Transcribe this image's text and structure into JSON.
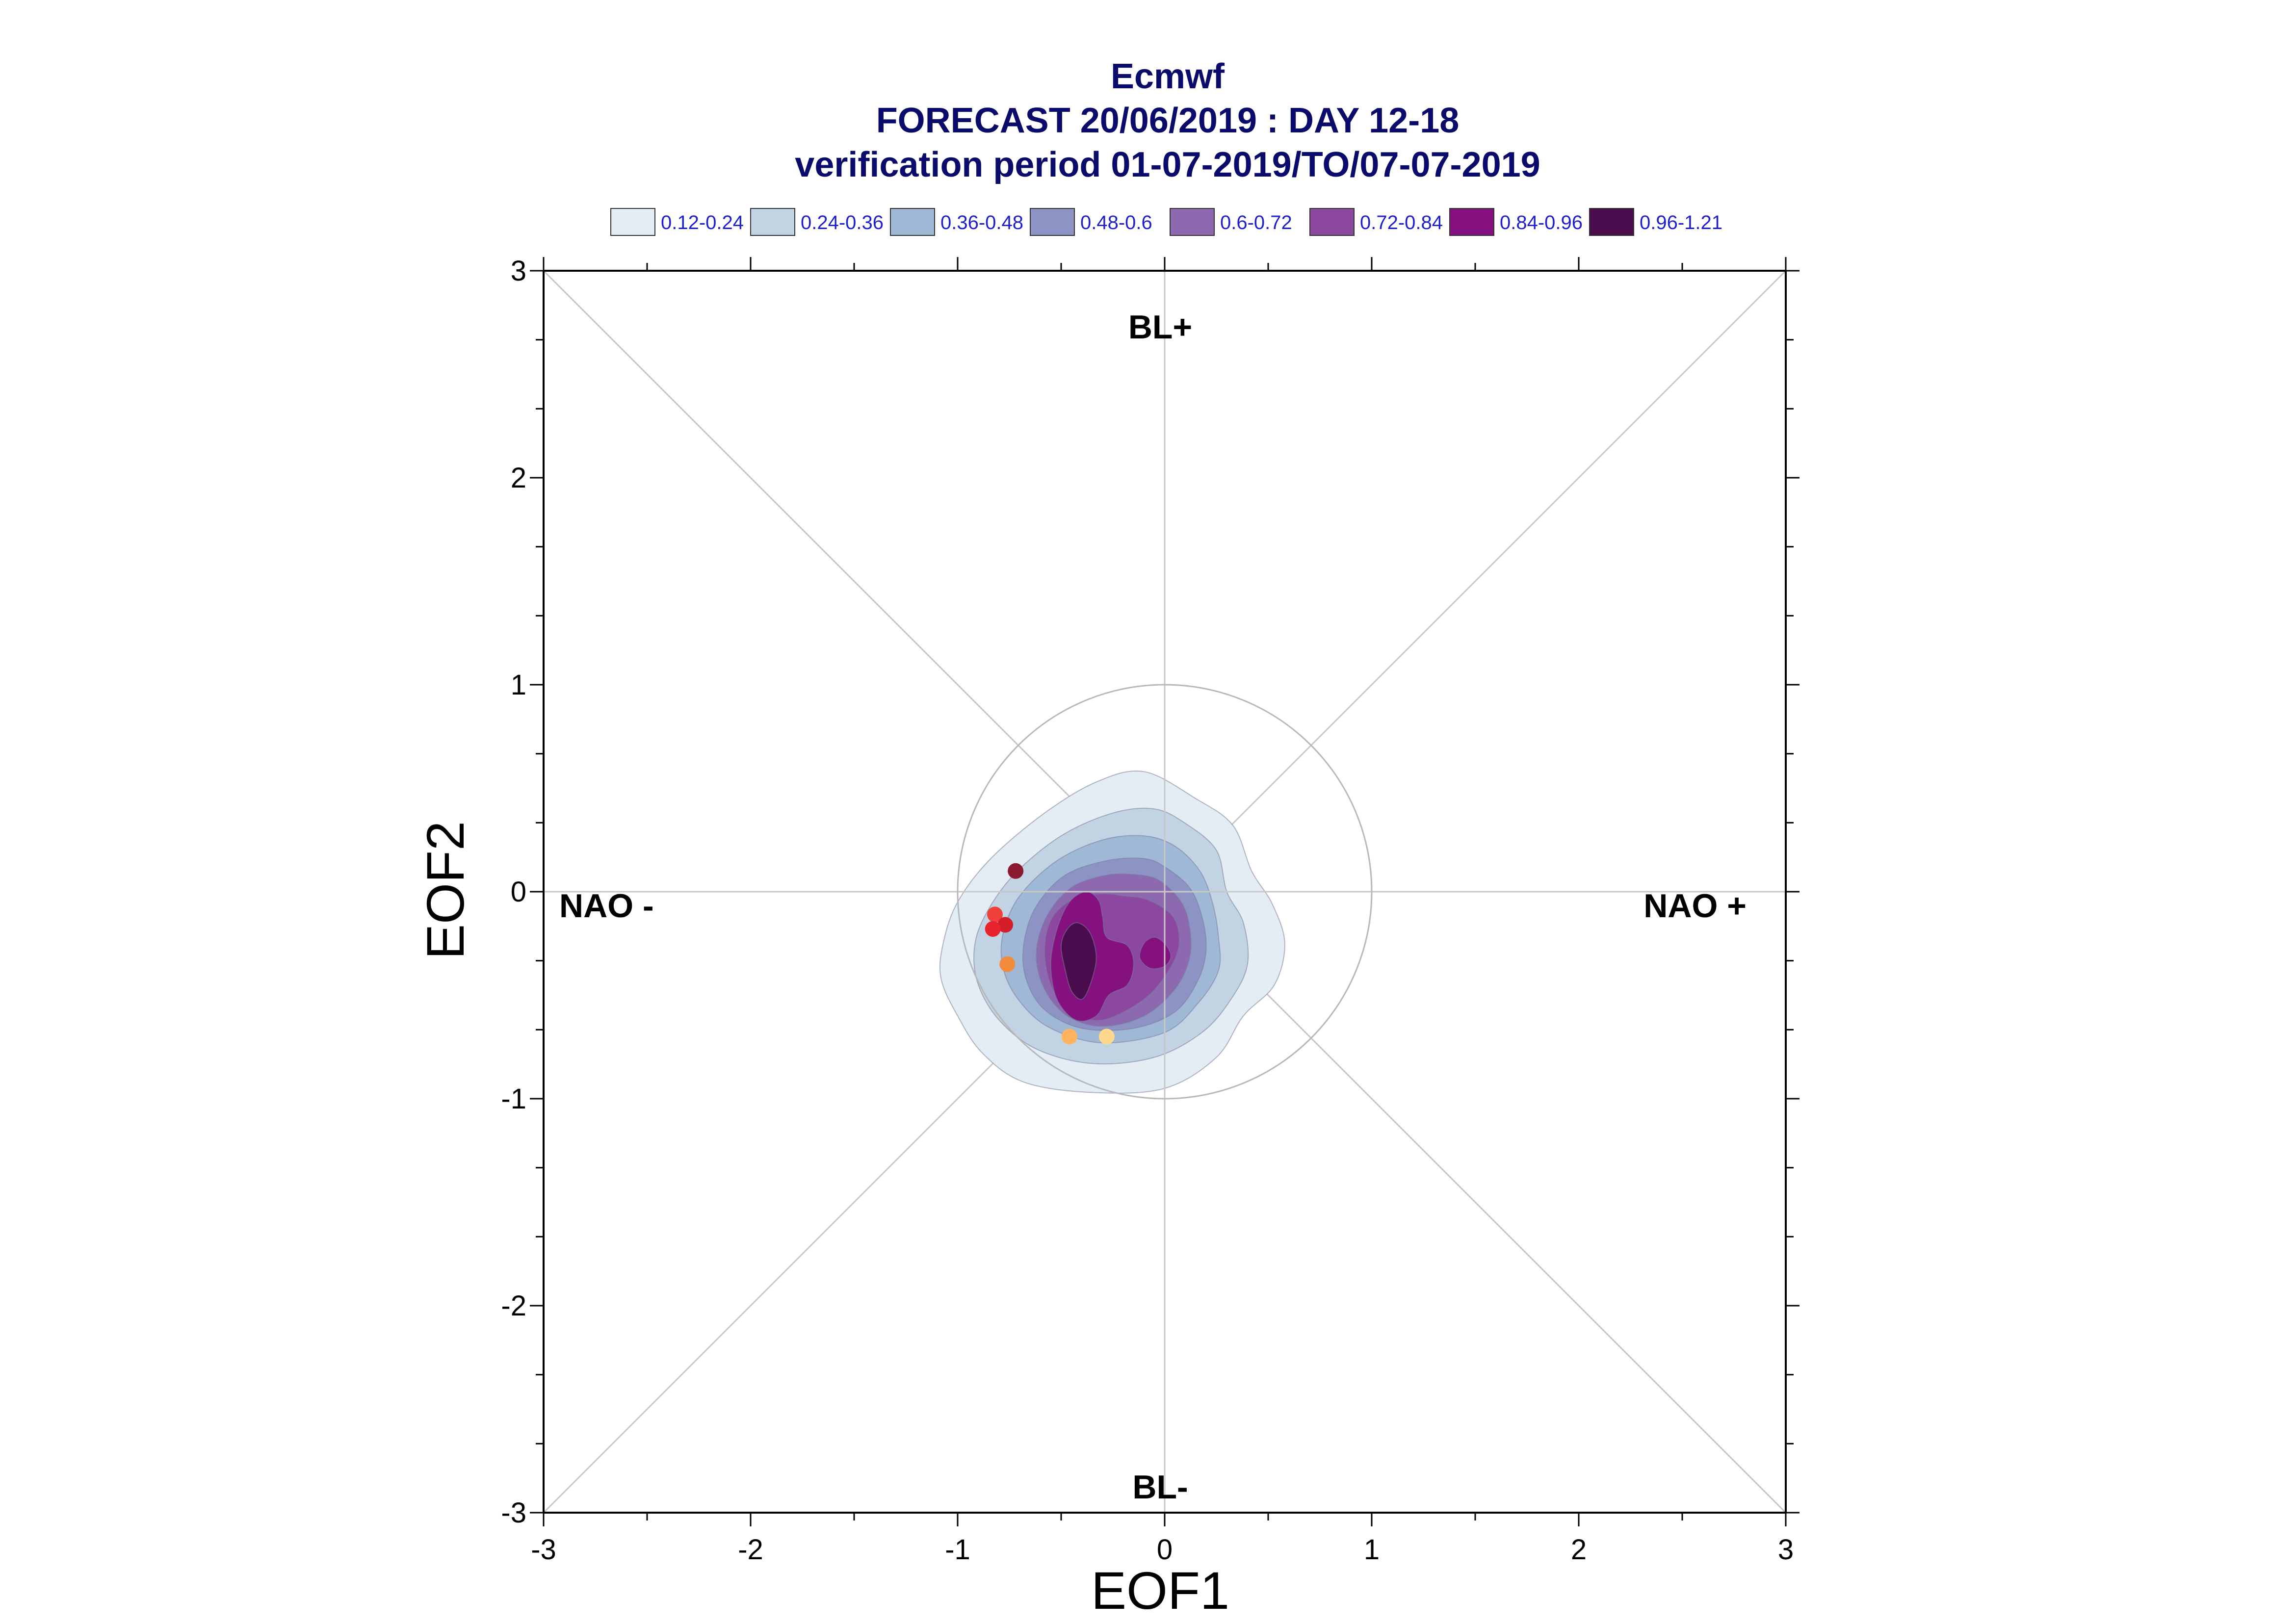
{
  "chart_data": {
    "type": "scatter",
    "title": "Ecmwf",
    "subtitle_lines": [
      "FORECAST 20/06/2019 : DAY 12-18",
      "verification period 01-07-2019/TO/07-07-2019"
    ],
    "xlabel": "EOF1",
    "ylabel": "EOF2",
    "xlim": [
      -3,
      3
    ],
    "ylim": [
      -3,
      3
    ],
    "xticks": [
      "-3",
      "-2",
      "-1",
      "0",
      "1",
      "2",
      "3"
    ],
    "yticks": [
      "-3",
      "-2",
      "-1",
      "0",
      "1",
      "2",
      "3"
    ],
    "grid": false,
    "reference_circle_radius": 1,
    "regime_labels": {
      "top": "BL+",
      "bottom": "BL-",
      "left": "NAO -",
      "right": "NAO +"
    },
    "legend": {
      "placement": "top",
      "entries": [
        {
          "label": "0.12-0.24",
          "color": "#e3edf3"
        },
        {
          "label": "0.24-0.36",
          "color": "#c2d4e4"
        },
        {
          "label": "0.36-0.48",
          "color": "#9fb8d6"
        },
        {
          "label": "0.48-0.6",
          "color": "#8e93c6"
        },
        {
          "label": "0.6-0.72",
          "color": "#8d69b0"
        },
        {
          "label": "0.72-0.84",
          "color": "#8c47a1"
        },
        {
          "label": "0.84-0.96",
          "color": "#85107f"
        },
        {
          "label": "0.96-1.21",
          "color": "#4b0c4d"
        }
      ]
    },
    "density_levels": [
      {
        "range": "0.12-0.24",
        "color": "#e3edf3",
        "contours": [
          [
            [
              0.15,
              0.45
            ],
            [
              0.33,
              0.32
            ],
            [
              0.42,
              0.1
            ],
            [
              0.52,
              -0.06
            ],
            [
              0.58,
              -0.25
            ],
            [
              0.53,
              -0.45
            ],
            [
              0.38,
              -0.6
            ],
            [
              0.25,
              -0.8
            ],
            [
              0.0,
              -0.95
            ],
            [
              -0.35,
              -0.97
            ],
            [
              -0.68,
              -0.92
            ],
            [
              -0.88,
              -0.78
            ],
            [
              -1.0,
              -0.6
            ],
            [
              -1.08,
              -0.42
            ],
            [
              -1.07,
              -0.25
            ],
            [
              -1.0,
              -0.05
            ],
            [
              -0.84,
              0.16
            ],
            [
              -0.58,
              0.38
            ],
            [
              -0.33,
              0.53
            ],
            [
              -0.1,
              0.58
            ]
          ]
        ]
      },
      {
        "range": "0.24-0.36",
        "color": "#c2d4e4",
        "contours": [
          [
            [
              0.1,
              0.33
            ],
            [
              0.25,
              0.2
            ],
            [
              0.3,
              0.0
            ],
            [
              0.38,
              -0.15
            ],
            [
              0.4,
              -0.35
            ],
            [
              0.32,
              -0.52
            ],
            [
              0.18,
              -0.68
            ],
            [
              -0.05,
              -0.8
            ],
            [
              -0.35,
              -0.83
            ],
            [
              -0.62,
              -0.76
            ],
            [
              -0.8,
              -0.62
            ],
            [
              -0.9,
              -0.45
            ],
            [
              -0.92,
              -0.28
            ],
            [
              -0.87,
              -0.12
            ],
            [
              -0.73,
              0.08
            ],
            [
              -0.5,
              0.27
            ],
            [
              -0.25,
              0.38
            ],
            [
              -0.05,
              0.4
            ]
          ]
        ]
      },
      {
        "range": "0.36-0.48",
        "color": "#9fb8d6",
        "contours": [
          [
            [
              0.05,
              0.22
            ],
            [
              0.17,
              0.1
            ],
            [
              0.23,
              -0.05
            ],
            [
              0.26,
              -0.22
            ],
            [
              0.26,
              -0.38
            ],
            [
              0.16,
              -0.54
            ],
            [
              0.0,
              -0.68
            ],
            [
              -0.3,
              -0.73
            ],
            [
              -0.55,
              -0.66
            ],
            [
              -0.7,
              -0.53
            ],
            [
              -0.78,
              -0.37
            ],
            [
              -0.78,
              -0.2
            ],
            [
              -0.7,
              -0.02
            ],
            [
              -0.52,
              0.15
            ],
            [
              -0.3,
              0.25
            ],
            [
              -0.1,
              0.27
            ]
          ]
        ]
      },
      {
        "range": "0.48-0.6",
        "color": "#8e93c6",
        "contours": [
          [
            [
              0.0,
              0.12
            ],
            [
              0.12,
              0.02
            ],
            [
              0.18,
              -0.12
            ],
            [
              0.2,
              -0.28
            ],
            [
              0.16,
              -0.43
            ],
            [
              0.05,
              -0.58
            ],
            [
              -0.15,
              -0.66
            ],
            [
              -0.4,
              -0.66
            ],
            [
              -0.58,
              -0.57
            ],
            [
              -0.67,
              -0.42
            ],
            [
              -0.68,
              -0.25
            ],
            [
              -0.62,
              -0.07
            ],
            [
              -0.48,
              0.08
            ],
            [
              -0.28,
              0.15
            ],
            [
              -0.1,
              0.16
            ]
          ]
        ]
      },
      {
        "range": "0.6-0.72",
        "color": "#8d69b0",
        "contours": [
          [
            [
              -0.02,
              0.05
            ],
            [
              0.08,
              -0.05
            ],
            [
              0.12,
              -0.17
            ],
            [
              0.12,
              -0.32
            ],
            [
              0.05,
              -0.47
            ],
            [
              -0.1,
              -0.6
            ],
            [
              -0.3,
              -0.65
            ],
            [
              -0.47,
              -0.6
            ],
            [
              -0.58,
              -0.47
            ],
            [
              -0.62,
              -0.3
            ],
            [
              -0.57,
              -0.12
            ],
            [
              -0.45,
              0.02
            ],
            [
              -0.28,
              0.08
            ],
            [
              -0.12,
              0.08
            ]
          ]
        ]
      },
      {
        "range": "0.72-0.84",
        "color": "#8c47a1",
        "contours": [
          [
            [
              -0.2,
              -0.02
            ],
            [
              -0.08,
              -0.04
            ],
            [
              0.04,
              -0.12
            ],
            [
              0.07,
              -0.25
            ],
            [
              0.02,
              -0.38
            ],
            [
              -0.1,
              -0.52
            ],
            [
              -0.3,
              -0.62
            ],
            [
              -0.45,
              -0.58
            ],
            [
              -0.55,
              -0.45
            ],
            [
              -0.58,
              -0.27
            ],
            [
              -0.54,
              -0.12
            ],
            [
              -0.43,
              -0.03
            ],
            [
              -0.3,
              -0.01
            ]
          ]
        ]
      },
      {
        "range": "0.84-0.96",
        "color": "#85107f",
        "contours": [
          [
            [
              -0.38,
              0.0
            ],
            [
              -0.32,
              -0.04
            ],
            [
              -0.3,
              -0.12
            ],
            [
              -0.28,
              -0.22
            ],
            [
              -0.18,
              -0.26
            ],
            [
              -0.15,
              -0.35
            ],
            [
              -0.18,
              -0.45
            ],
            [
              -0.27,
              -0.5
            ],
            [
              -0.33,
              -0.6
            ],
            [
              -0.43,
              -0.62
            ],
            [
              -0.52,
              -0.52
            ],
            [
              -0.55,
              -0.35
            ],
            [
              -0.52,
              -0.18
            ],
            [
              -0.46,
              -0.05
            ]
          ],
          [
            [
              -0.05,
              -0.22
            ],
            [
              0.0,
              -0.25
            ],
            [
              0.03,
              -0.31
            ],
            [
              0.0,
              -0.36
            ],
            [
              -0.07,
              -0.37
            ],
            [
              -0.12,
              -0.32
            ],
            [
              -0.1,
              -0.25
            ]
          ]
        ]
      },
      {
        "range": "0.96-1.21",
        "color": "#4b0c4d",
        "contours": [
          [
            [
              -0.42,
              -0.15
            ],
            [
              -0.36,
              -0.2
            ],
            [
              -0.33,
              -0.32
            ],
            [
              -0.36,
              -0.45
            ],
            [
              -0.4,
              -0.52
            ],
            [
              -0.45,
              -0.48
            ],
            [
              -0.48,
              -0.38
            ],
            [
              -0.5,
              -0.26
            ],
            [
              -0.47,
              -0.18
            ]
          ]
        ]
      }
    ],
    "series": [
      {
        "points": [
          {
            "x": -0.72,
            "y": 0.1,
            "color": "#8b1a2e"
          },
          {
            "x": -0.82,
            "y": -0.11,
            "color": "#f0413a"
          },
          {
            "x": -0.77,
            "y": -0.16,
            "color": "#d41f2a"
          },
          {
            "x": -0.83,
            "y": -0.18,
            "color": "#e8232e"
          },
          {
            "x": -0.76,
            "y": -0.35,
            "color": "#f48a3c"
          },
          {
            "x": -0.46,
            "y": -0.7,
            "color": "#fdb45c"
          },
          {
            "x": -0.28,
            "y": -0.7,
            "color": "#fed98b"
          }
        ]
      }
    ]
  }
}
